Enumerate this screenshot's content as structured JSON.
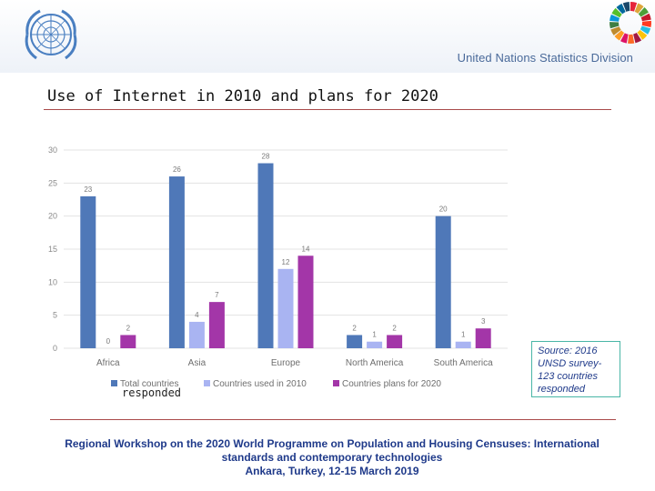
{
  "header": {
    "organization": "United Nations Statistics Division",
    "logo_icon": "un-emblem-icon",
    "sdg_icon": "sdg-color-wheel-icon",
    "brand_color": "#4a6a9a"
  },
  "slide": {
    "title": "Use of Internet in 2010 and plans for 2020",
    "rule_color": "#a94a4a"
  },
  "chart_data": {
    "type": "bar",
    "categories": [
      "Africa",
      "Asia",
      "Europe",
      "North America",
      "South America"
    ],
    "series": [
      {
        "name": "Total countries responded",
        "values": [
          23,
          26,
          28,
          2,
          20
        ],
        "color": "#4f78b8"
      },
      {
        "name": "Countries used in 2010",
        "values": [
          0,
          4,
          12,
          1,
          1
        ],
        "color": "#a9b4f2"
      },
      {
        "name": "Countries plans for 2020",
        "values": [
          2,
          7,
          14,
          2,
          3
        ],
        "color": "#a336a8"
      }
    ],
    "ylim": [
      0,
      30
    ],
    "yticks": [
      0,
      5,
      10,
      15,
      20,
      25,
      30
    ],
    "grid": true,
    "legend_position": "bottom",
    "data_labels": true
  },
  "stray_text": "responded",
  "source": {
    "text": "Source: 2016 UNSD survey-123 countries responded",
    "lines": [
      "Source: 2016",
      "UNSD survey-",
      "123 countries",
      "responded"
    ]
  },
  "footer": {
    "line1": "Regional Workshop on the 2020 World Programme on Population and Housing Censuses: International",
    "line2": "standards and contemporary technologies",
    "line3": "Ankara, Turkey, 12-15 March 2019"
  }
}
